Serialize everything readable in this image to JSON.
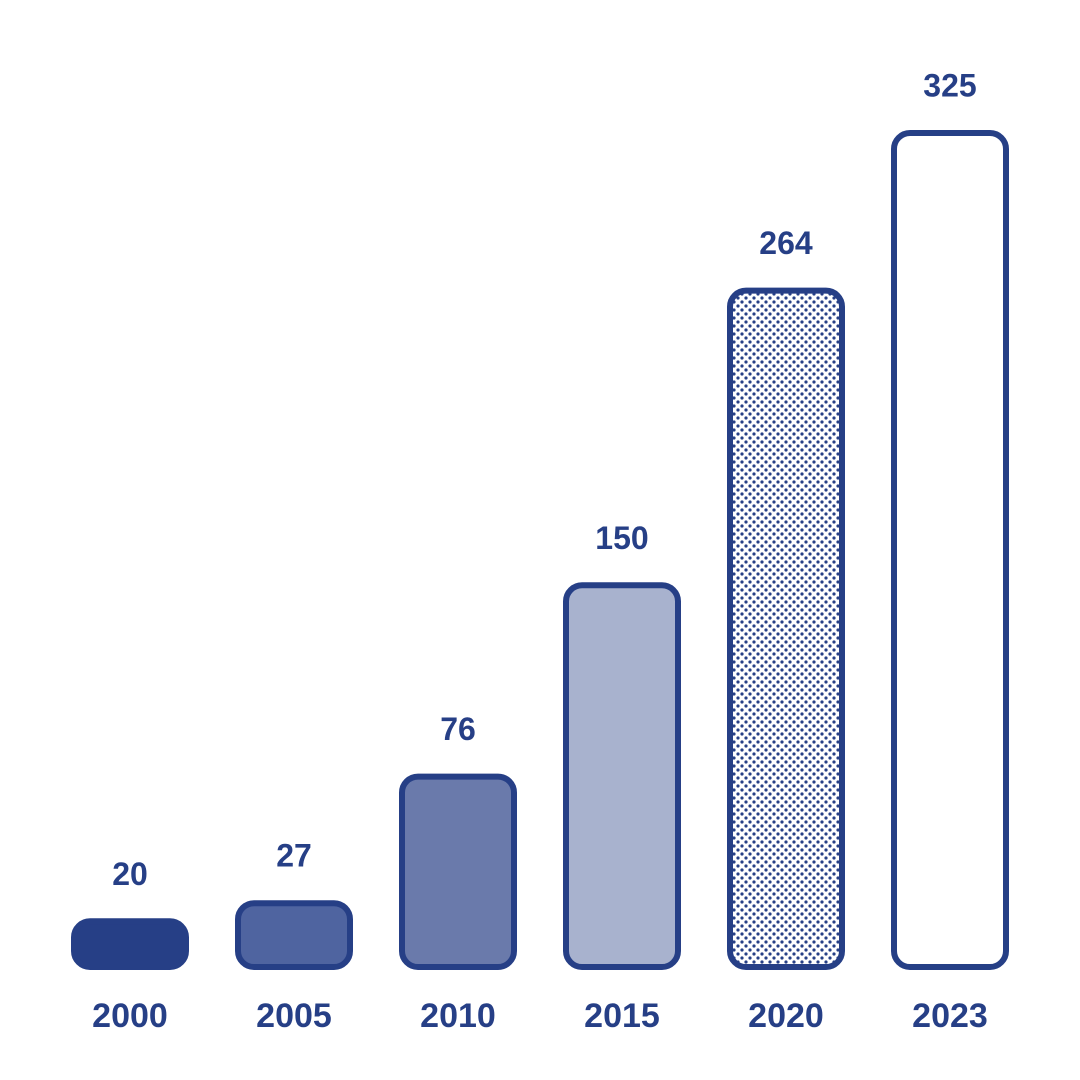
{
  "chart_data": {
    "type": "bar",
    "categories": [
      "2000",
      "2005",
      "2010",
      "2015",
      "2020",
      "2023"
    ],
    "values": [
      20,
      27,
      76,
      150,
      264,
      325
    ],
    "fills": [
      {
        "color": "#263f86"
      },
      {
        "color": "#4f64a0"
      },
      {
        "color": "#6a7aab"
      },
      {
        "color": "#a8b2ce"
      },
      {
        "color": "#263f86",
        "pattern": "dots"
      },
      {
        "color": "#ffffff"
      }
    ],
    "stroke": "#263f86",
    "ylim": [
      0,
      325
    ]
  }
}
